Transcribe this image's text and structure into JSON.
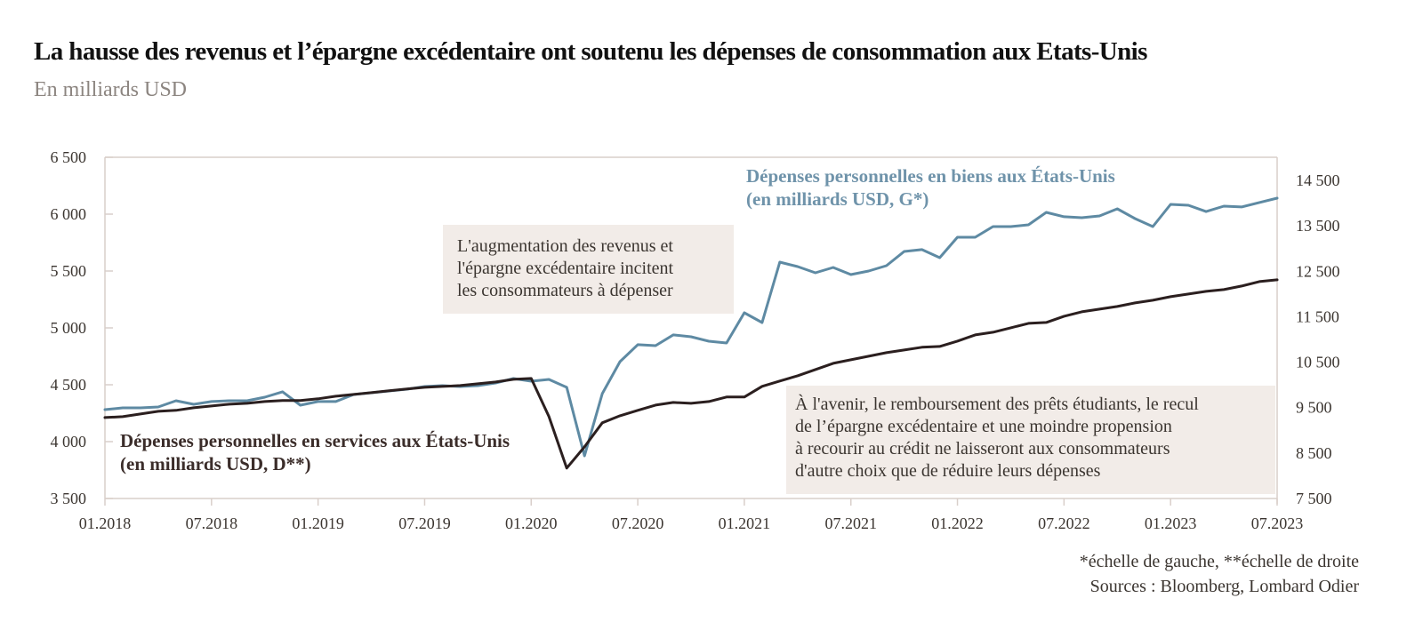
{
  "header": {
    "title": "La hausse des revenus et l’épargne excédentaire ont soutenu les dépenses de consommation aux Etats-Unis",
    "subtitle": "En milliards USD"
  },
  "annotations": {
    "box1": [
      "L'augmentation des revenus et",
      "l'épargne excédentaire incitent",
      "les consommateurs à dépenser"
    ],
    "box2": [
      "À l'avenir, le remboursement des prêts étudiants, le recul",
      "de l’épargne excédentaire et une moindre propension",
      "à recourir au crédit ne laisseront aux consommateurs",
      "d'autre choix que de réduire leurs dépenses"
    ],
    "goods_label": [
      "Dépenses personnelles en biens aux États-Unis",
      "(en milliards USD, G*)"
    ],
    "services_label": [
      "Dépenses personnelles en services aux États-Unis",
      "(en milliards USD, D**)"
    ]
  },
  "footer": {
    "scale_note": "*échelle de gauche, **échelle de droite",
    "sources": "Sources : Bloomberg, Lombard Odier"
  },
  "colors": {
    "goods": "#5e8aa3",
    "services": "#2b1f1f",
    "box_bg": "#f2ece8",
    "axis": "#d9cfca",
    "subtitle": "#8c8580"
  },
  "chart_data": {
    "type": "line",
    "title": "La hausse des revenus et l’épargne excédentaire ont soutenu les dépenses de consommation aux Etats-Unis",
    "subtitle": "En milliards USD",
    "x_start": "01.2018",
    "x_end": "07.2023",
    "x_frequency": "monthly",
    "x_tick_labels": [
      "01.2018",
      "07.2018",
      "01.2019",
      "07.2019",
      "01.2020",
      "07.2020",
      "01.2021",
      "07.2021",
      "01.2022",
      "07.2022",
      "01.2023",
      "07.2023"
    ],
    "y_left": {
      "label": "",
      "ylim": [
        3500,
        6500
      ],
      "ticks": [
        3500,
        4000,
        4500,
        5000,
        5500,
        6000,
        6500
      ],
      "tick_labels": [
        "3 500",
        "4 000",
        "4 500",
        "5 000",
        "5 500",
        "6 000",
        "6 500"
      ]
    },
    "y_right": {
      "label": "",
      "ylim": [
        7500,
        14500
      ],
      "ticks": [
        7500,
        8500,
        9500,
        10500,
        11500,
        12500,
        13500,
        14500
      ],
      "tick_labels": [
        "7 500",
        "8 500",
        "9 500",
        "10 500",
        "11 500",
        "12 500",
        "13 500",
        "14 500"
      ]
    },
    "grid": false,
    "series": [
      {
        "name": "Dépenses personnelles en biens aux États-Unis (en milliards USD, G*)",
        "axis": "left",
        "values": [
          4281,
          4297,
          4297,
          4305,
          4359,
          4328,
          4352,
          4359,
          4359,
          4391,
          4438,
          4320,
          4352,
          4352,
          4414,
          4430,
          4445,
          4461,
          4484,
          4492,
          4484,
          4492,
          4516,
          4555,
          4531,
          4547,
          4477,
          3875,
          4422,
          4703,
          4852,
          4844,
          4938,
          4922,
          4883,
          4867,
          5133,
          5047,
          5578,
          5539,
          5484,
          5531,
          5469,
          5500,
          5547,
          5672,
          5688,
          5617,
          5797,
          5797,
          5891,
          5891,
          5906,
          6016,
          5977,
          5969,
          5984,
          6047,
          5961,
          5891,
          6086,
          6078,
          6023,
          6070,
          6063,
          6102,
          6141
        ]
      },
      {
        "name": "Dépenses personnelles en services aux États-Unis (en milliards USD, D**)",
        "axis": "right",
        "values": [
          9282,
          9301,
          9360,
          9419,
          9439,
          9497,
          9536,
          9575,
          9595,
          9634,
          9654,
          9654,
          9693,
          9751,
          9790,
          9829,
          9869,
          9908,
          9947,
          9966,
          9986,
          10025,
          10064,
          10122,
          10142,
          9302,
          8168,
          8637,
          9165,
          9321,
          9439,
          9556,
          9614,
          9595,
          9634,
          9732,
          9732,
          9967,
          10084,
          10201,
          10338,
          10475,
          10553,
          10631,
          10709,
          10768,
          10827,
          10846,
          10963,
          11100,
          11159,
          11257,
          11354,
          11374,
          11511,
          11608,
          11667,
          11726,
          11804,
          11863,
          11941,
          12000,
          12058,
          12097,
          12176,
          12273,
          12312
        ]
      }
    ],
    "legend": "inline-labels"
  }
}
